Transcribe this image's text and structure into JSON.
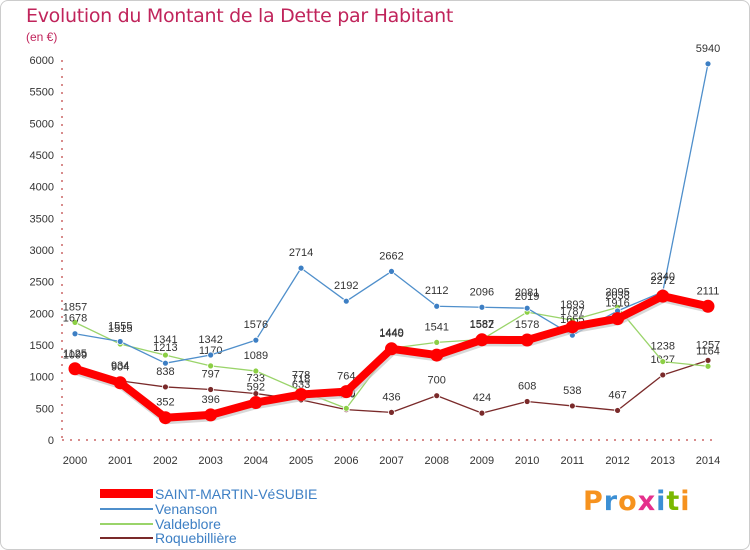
{
  "header": {
    "title": "Evolution du Montant de la Dette par Habitant",
    "subtitle": "(en €)"
  },
  "logo": {
    "text": "Proxiti",
    "letters": [
      {
        "char": "P",
        "color": "#f6921e"
      },
      {
        "char": "r",
        "color": "#3b8fd4"
      },
      {
        "char": "o",
        "color": "#f6921e"
      },
      {
        "char": "x",
        "color": "#e5308c"
      },
      {
        "char": "i",
        "color": "#3b8fd4"
      },
      {
        "char": "t",
        "color": "#7ab800"
      },
      {
        "char": "i",
        "color": "#f6921e"
      }
    ]
  },
  "chart_data": {
    "type": "line",
    "title": "Evolution du Montant de la Dette par Habitant",
    "subtitle": "(en €)",
    "xlabel": "",
    "ylabel": "",
    "x": [
      "2000",
      "2001",
      "2002",
      "2003",
      "2004",
      "2005",
      "2006",
      "2007",
      "2008",
      "2009",
      "2010",
      "2011",
      "2012",
      "2013",
      "2014"
    ],
    "ylim": [
      0,
      6000
    ],
    "yticks": [
      0,
      500,
      1000,
      1500,
      2000,
      2500,
      3000,
      3500,
      4000,
      4500,
      5000,
      5500,
      6000
    ],
    "grid": false,
    "legend_position": "bottom-left",
    "series": [
      {
        "name": "Roquebillière",
        "color": "#7a2a2a",
        "marker": "#7a2a2a",
        "values": [
          1099,
          934,
          838,
          797,
          733,
          633,
          480,
          436,
          700,
          424,
          608,
          538,
          467,
          1027,
          1257
        ],
        "labels": [
          "1099",
          "934",
          "838",
          "797",
          "733",
          "633",
          "480",
          "436",
          "700",
          "424",
          "608",
          "538",
          "467",
          "1027",
          "1257"
        ]
      },
      {
        "name": "Valdeblore",
        "color": "#9ad46a",
        "marker": "#8ccf45",
        "values": [
          1857,
          1515,
          1341,
          1170,
          1089,
          778,
          500,
          1449,
          1541,
          1587,
          2019,
          1893,
          2095,
          1238,
          1164
        ],
        "labels": [
          "1857",
          "1515",
          "1341",
          "1170",
          "1089",
          "778",
          "500",
          "1449",
          "1541",
          "1587",
          "2019",
          "1893",
          "2095",
          "1238",
          "1164"
        ]
      },
      {
        "name": "Venanson",
        "color": "#4f8fcb",
        "marker": "#3d7fc4",
        "values": [
          1678,
          1555,
          1213,
          1342,
          1576,
          2714,
          2192,
          2662,
          2112,
          2096,
          2081,
          1655,
          2038,
          2340,
          5940
        ],
        "labels": [
          "1678",
          "1555",
          "1213",
          "1342",
          "1576",
          "2714",
          "2192",
          "2662",
          "2112",
          "2096",
          "2081",
          "1655",
          "2038",
          "2340",
          "5940"
        ]
      },
      {
        "name": "SAINT-MARTIN-VéSUBIE",
        "color": "#ff0000",
        "marker": "#ff0000",
        "values": [
          1125,
          904,
          352,
          396,
          592,
          718,
          764,
          1440,
          1341,
          1582,
          1578,
          1787,
          1916,
          2272,
          2111
        ],
        "labels": [
          "1125",
          "904",
          "352",
          "396",
          "592",
          "718",
          "764",
          "1440",
          "",
          "1582",
          "1578",
          "1787",
          "1916",
          "2272",
          "2111"
        ]
      }
    ],
    "legend": [
      {
        "name": "SAINT-MARTIN-VéSUBIE",
        "color": "#ff0000"
      },
      {
        "name": "Venanson",
        "color": "#4f8fcb"
      },
      {
        "name": "Valdeblore",
        "color": "#9ad46a"
      },
      {
        "name": "Roquebillière",
        "color": "#7a2a2a"
      }
    ]
  }
}
